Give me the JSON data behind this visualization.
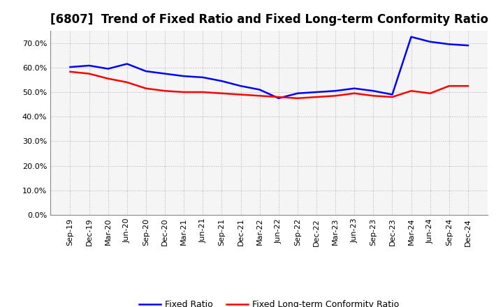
{
  "title": "[6807]  Trend of Fixed Ratio and Fixed Long-term Conformity Ratio",
  "x_labels": [
    "Sep-19",
    "Dec-19",
    "Mar-20",
    "Jun-20",
    "Sep-20",
    "Dec-20",
    "Mar-21",
    "Jun-21",
    "Sep-21",
    "Dec-21",
    "Mar-22",
    "Jun-22",
    "Sep-22",
    "Dec-22",
    "Mar-23",
    "Jun-23",
    "Sep-23",
    "Dec-23",
    "Mar-24",
    "Jun-24",
    "Sep-24",
    "Dec-24"
  ],
  "fixed_ratio": [
    60.2,
    60.8,
    59.5,
    61.5,
    58.5,
    57.5,
    56.5,
    56.0,
    54.5,
    52.5,
    51.0,
    47.5,
    49.5,
    50.0,
    50.5,
    51.5,
    50.5,
    49.0,
    72.5,
    70.5,
    69.5,
    69.0
  ],
  "fixed_lt_ratio": [
    58.3,
    57.5,
    55.5,
    54.0,
    51.5,
    50.5,
    50.0,
    50.0,
    49.5,
    49.0,
    48.5,
    48.0,
    47.5,
    48.0,
    48.5,
    49.5,
    48.5,
    48.0,
    50.5,
    49.5,
    52.5,
    52.5
  ],
  "ylim": [
    0,
    75
  ],
  "yticks": [
    0.0,
    10.0,
    20.0,
    30.0,
    40.0,
    50.0,
    60.0,
    70.0
  ],
  "fixed_ratio_color": "#0000FF",
  "fixed_lt_ratio_color": "#FF0000",
  "background_color": "#FFFFFF",
  "plot_bg_color": "#F5F5F5",
  "grid_color": "#AAAAAA",
  "title_fontsize": 12,
  "legend_fontsize": 9,
  "axis_fontsize": 8
}
